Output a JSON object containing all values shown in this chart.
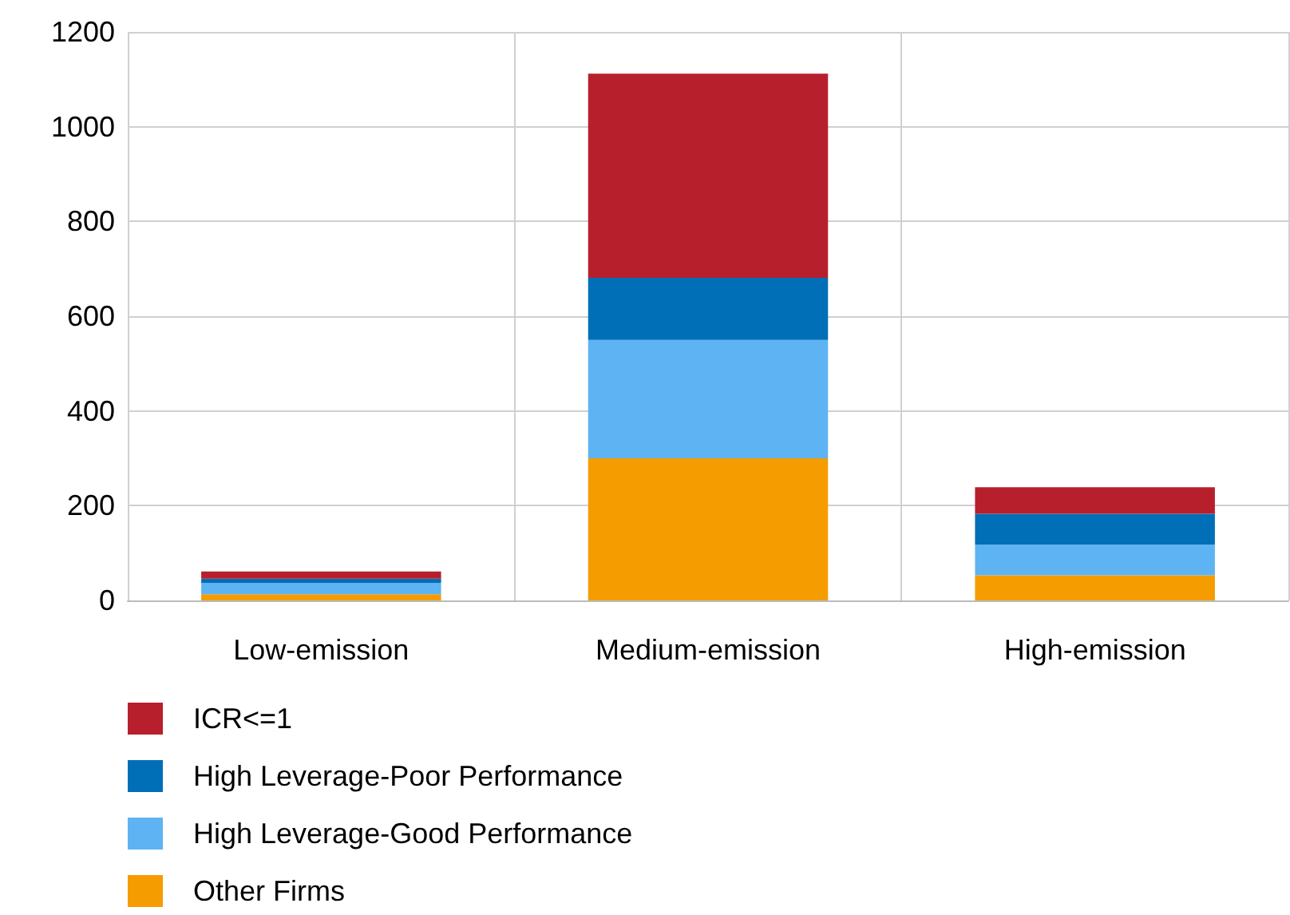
{
  "chart_data": {
    "type": "bar",
    "stacked": true,
    "categories": [
      "Low-emission",
      "Medium-emission",
      "High-emission"
    ],
    "series": [
      {
        "name": "Other Firms",
        "color": "#f59c00",
        "values": [
          13,
          300,
          53
        ]
      },
      {
        "name": "High Leverage-Good Performance",
        "color": "#5eb3f3",
        "values": [
          24,
          250,
          65
        ]
      },
      {
        "name": "High Leverage-Poor Performance",
        "color": "#006fb7",
        "values": [
          9,
          131,
          65
        ]
      },
      {
        "name": "ICR<=1",
        "color": "#b81f2c",
        "values": [
          15,
          431,
          56
        ]
      }
    ],
    "ylim": [
      0,
      1200
    ],
    "yticks": [
      0,
      200,
      400,
      600,
      800,
      1000,
      1200
    ],
    "grid": true,
    "legend": "bottom left"
  }
}
